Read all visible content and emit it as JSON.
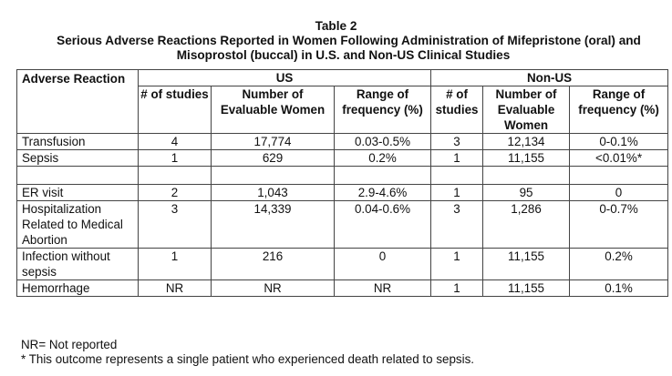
{
  "caption": {
    "table_number": "Table 2",
    "title_line1": "Serious Adverse Reactions Reported in Women Following Administration of Mifepristone (oral) and",
    "title_line2": "Misoprostol (buccal) in U.S. and Non-US Clinical Studies"
  },
  "header": {
    "adverse_reaction": "Adverse Reaction",
    "group_us": "US",
    "group_non_us": "Non-US",
    "col_studies": "# of studies",
    "col_evaluable": "Number of Evaluable Women",
    "col_range": "Range of frequency (%)"
  },
  "rows": [
    {
      "reaction": "Transfusion",
      "us_studies": "4",
      "us_women": "17,774",
      "us_range": "0.03-0.5%",
      "non_studies": "3",
      "non_women": "12,134",
      "non_range": "0-0.1%"
    },
    {
      "reaction": "Sepsis",
      "us_studies": "1",
      "us_women": "629",
      "us_range": "0.2%",
      "non_studies": "1",
      "non_women": "11,155",
      "non_range": "<0.01%*"
    },
    {
      "reaction": "ER visit",
      "us_studies": "2",
      "us_women": "1,043",
      "us_range": "2.9-4.6%",
      "non_studies": "1",
      "non_women": "95",
      "non_range": "0"
    },
    {
      "reaction": "Hospitalization Related to Medical Abortion",
      "us_studies": "3",
      "us_women": "14,339",
      "us_range": "0.04-0.6%",
      "non_studies": "3",
      "non_women": "1,286",
      "non_range": "0-0.7%"
    },
    {
      "reaction": "Infection without sepsis",
      "us_studies": "1",
      "us_women": "216",
      "us_range": "0",
      "non_studies": "1",
      "non_women": "11,155",
      "non_range": "0.2%"
    },
    {
      "reaction": "Hemorrhage",
      "us_studies": "NR",
      "us_women": "NR",
      "us_range": "NR",
      "non_studies": "1",
      "non_women": "11,155",
      "non_range": "0.1%"
    }
  ],
  "footnotes": {
    "nr": "NR= Not reported",
    "asterisk": "* This outcome represents a single patient who experienced death related to sepsis."
  }
}
